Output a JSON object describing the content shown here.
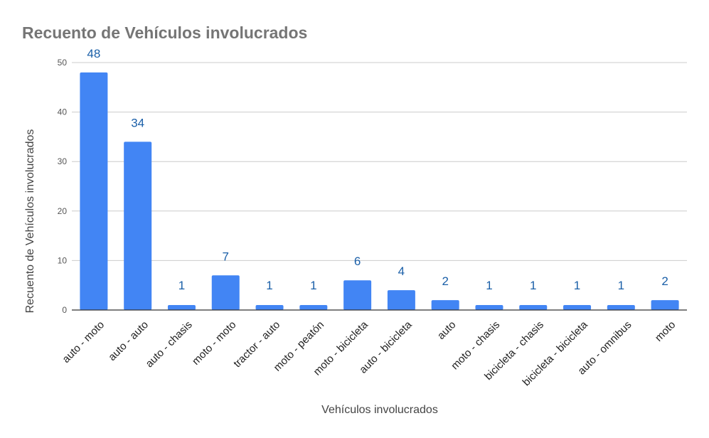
{
  "colors": {
    "bar": "#4285f4",
    "data_label": "#1a5fa8",
    "grid": "#cccccc",
    "title": "#757575"
  },
  "chart_data": {
    "type": "bar",
    "title": "Recuento de Vehículos involucrados",
    "xlabel": "Vehículos involucrados",
    "ylabel": "Recuento de Vehículos involucrados",
    "ylim": [
      0,
      50
    ],
    "yticks": [
      0,
      10,
      20,
      30,
      40,
      50
    ],
    "grid": true,
    "legend": "none",
    "categories": [
      "auto - moto",
      "auto - auto",
      "auto - chasis",
      "moto - moto",
      "tractor - auto",
      "moto - peatón",
      "moto - bicicleta",
      "auto - bicicleta",
      "auto",
      "moto - chasis",
      "bicicleta - chasis",
      "bicicleta - bicicleta",
      "auto - omnibus",
      "moto"
    ],
    "values": [
      48,
      34,
      1,
      7,
      1,
      1,
      6,
      4,
      2,
      1,
      1,
      1,
      1,
      2
    ],
    "data_labels": [
      "48",
      "34",
      "1",
      "7",
      "1",
      "1",
      "6",
      "4",
      "2",
      "1",
      "1",
      "1",
      "1",
      "2"
    ]
  }
}
